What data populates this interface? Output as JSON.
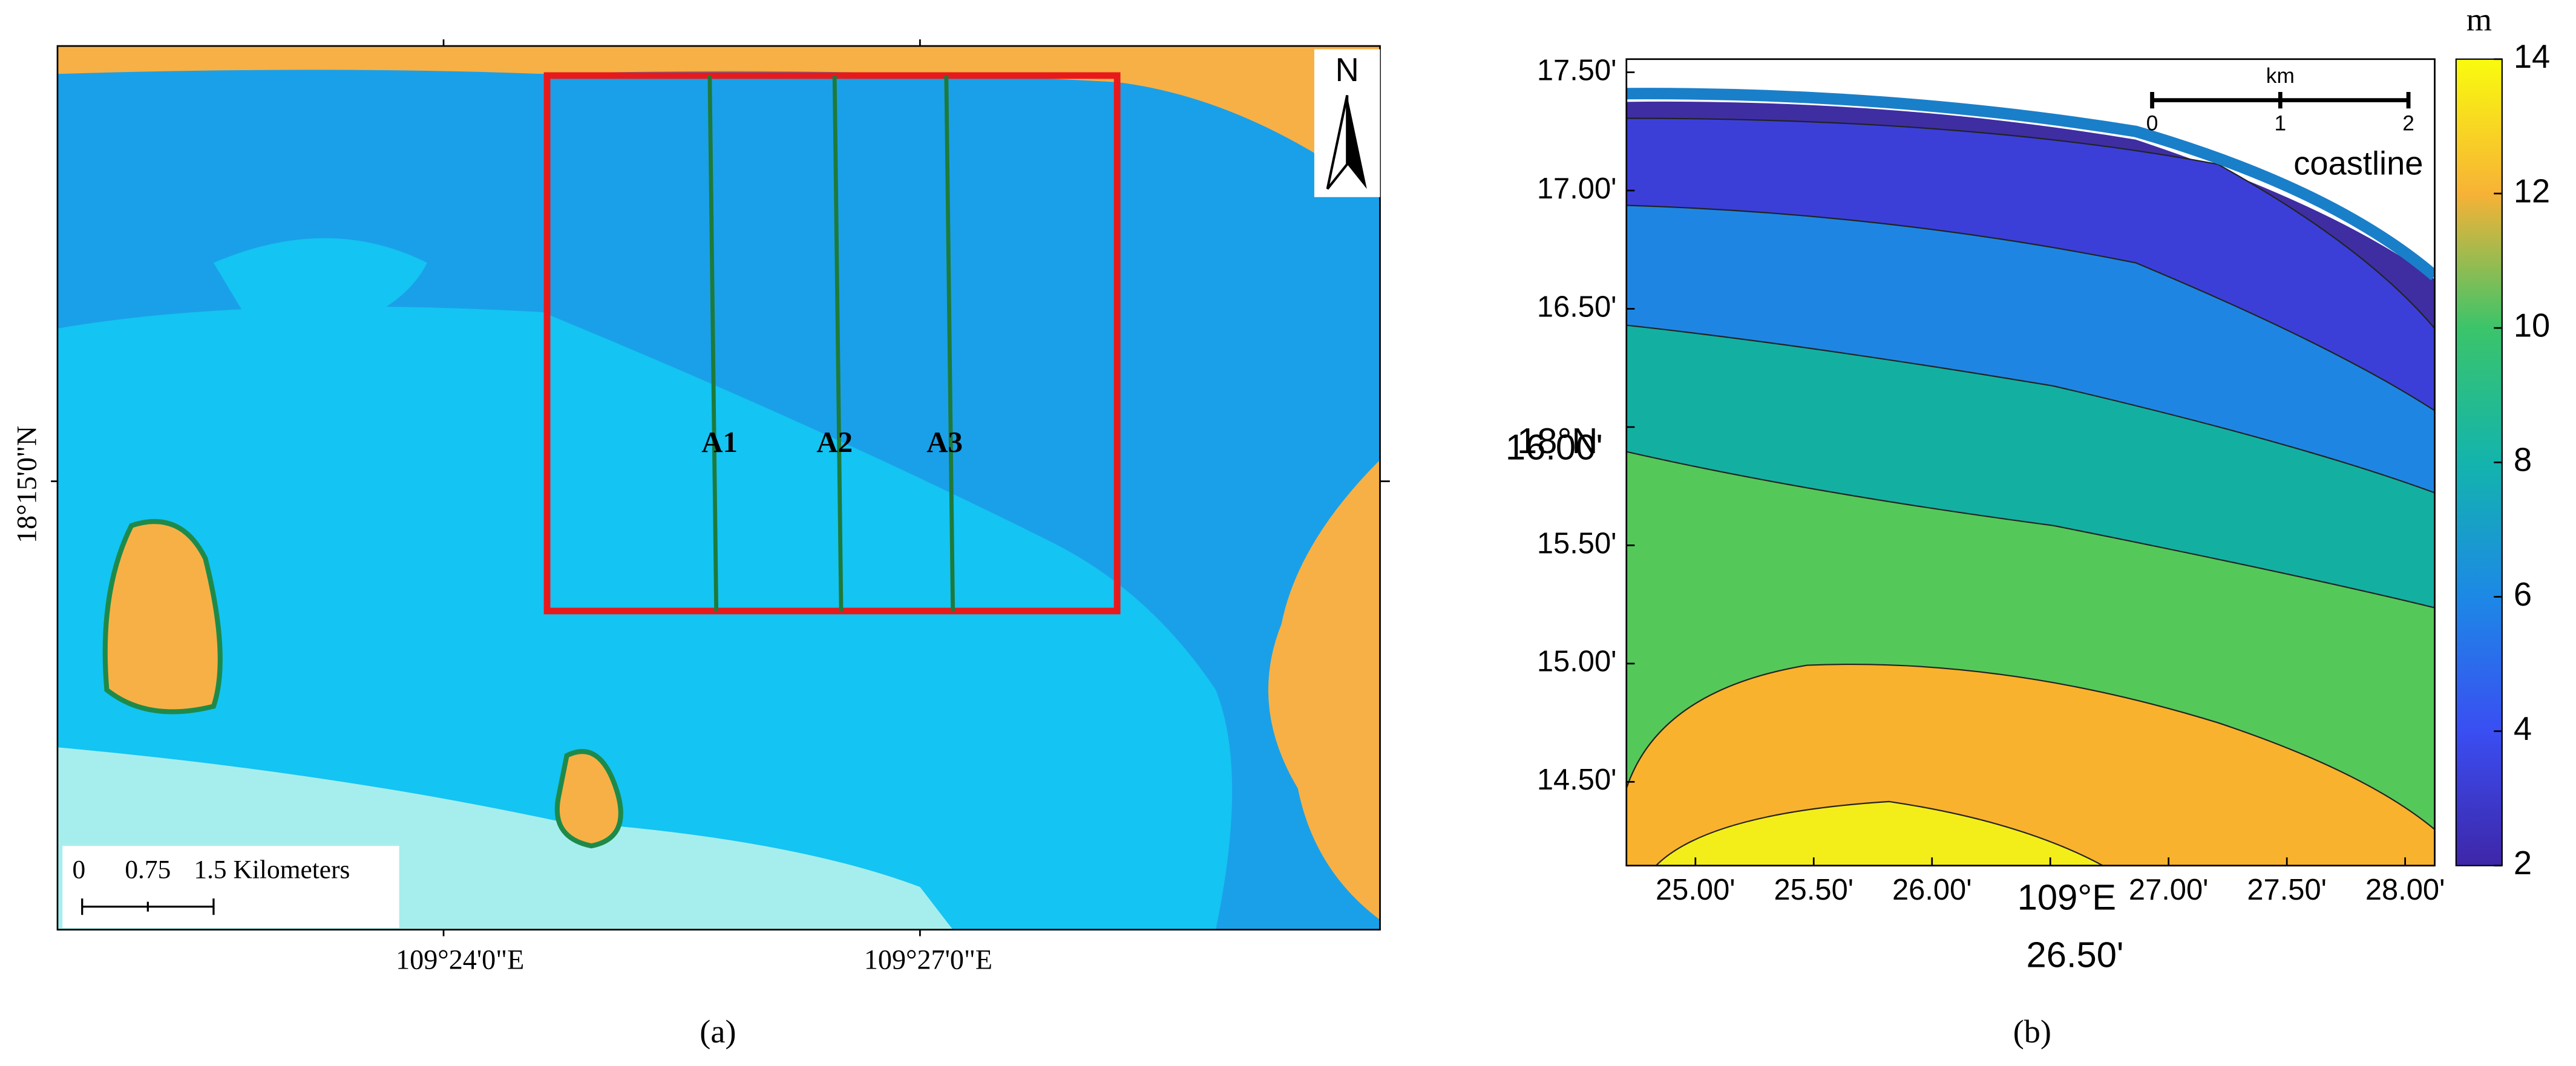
{
  "panel_a": {
    "lat_label": "18°15'0\"N",
    "lon_labels": [
      "109°24'0\"E",
      "109°27'0\"E"
    ],
    "north": "N",
    "transects": [
      "A1",
      "A2",
      "A3"
    ],
    "scale_bar": [
      "0",
      "0.75",
      "1.5 Kilometers"
    ],
    "caption": "(a)"
  },
  "panel_b": {
    "yticks": [
      {
        "value": 17.5,
        "label": "17.50'"
      },
      {
        "value": 17.0,
        "label": "17.00'"
      },
      {
        "value": 16.5,
        "label": "16.50'"
      },
      {
        "value": 15.5,
        "label": "15.50'"
      },
      {
        "value": 15.0,
        "label": "15.00'"
      },
      {
        "value": 14.5,
        "label": "14.50'"
      }
    ],
    "y_center": {
      "degree": "18°N",
      "minute": {
        "value": 16.0,
        "label": "16.00'"
      }
    },
    "xticks": [
      {
        "value": 25.0,
        "label": "25.00'"
      },
      {
        "value": 25.5,
        "label": "25.50'"
      },
      {
        "value": 26.0,
        "label": "26.00'"
      },
      {
        "value": 27.0,
        "label": "27.00'"
      },
      {
        "value": 27.5,
        "label": "27.50'"
      },
      {
        "value": 28.0,
        "label": "28.00'"
      }
    ],
    "x_center": {
      "degree": "109°E",
      "minute": {
        "value": 26.5,
        "label": "26.50'"
      }
    },
    "colorbar": {
      "unit": "m",
      "lim": [
        2,
        14
      ],
      "ticks": [
        2,
        4,
        6,
        8,
        10,
        12,
        14
      ]
    },
    "scale_bar": {
      "unit": "km",
      "labels": [
        "0",
        "1",
        "2"
      ]
    },
    "coastline": "coastline",
    "caption": "(b)"
  }
}
